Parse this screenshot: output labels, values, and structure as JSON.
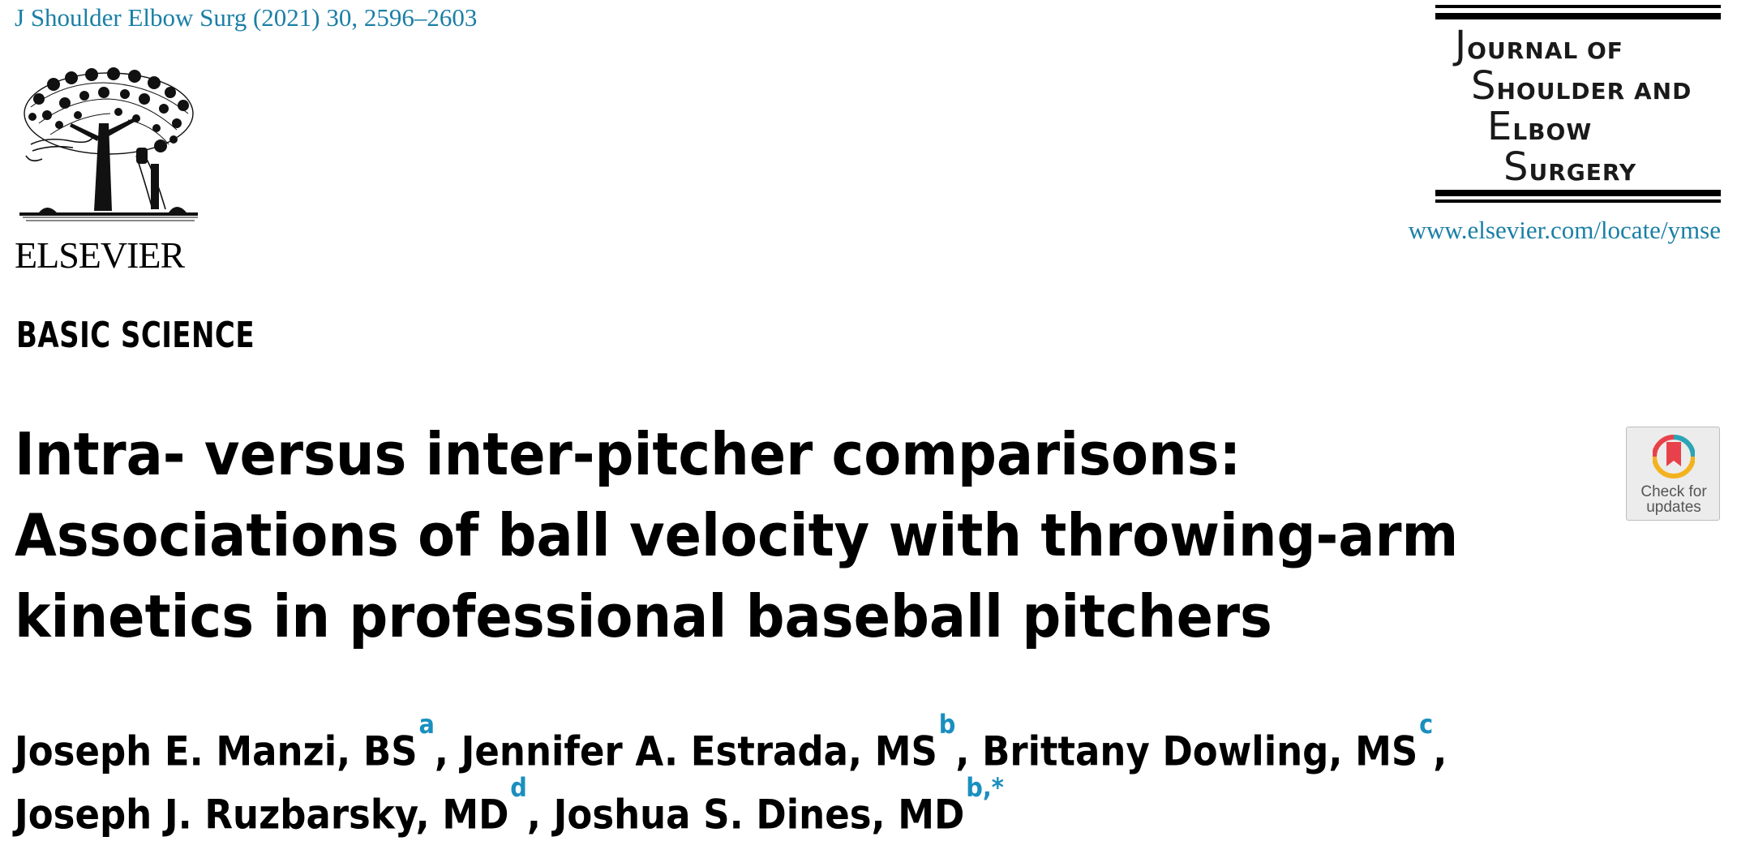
{
  "header": {
    "citation": "J Shoulder Elbow Surg (2021) 30, 2596–2603",
    "publisher": "ELSEVIER",
    "journal_lines": [
      {
        "cap": "J",
        "rest": "OURNAL OF"
      },
      {
        "cap": "S",
        "rest": "HOULDER AND"
      },
      {
        "cap": "E",
        "rest": "LBOW"
      },
      {
        "cap": "S",
        "rest": "URGERY"
      }
    ],
    "journal_url": "www.elsevier.com/locate/ymse"
  },
  "article": {
    "section": "BASIC SCIENCE",
    "title_lines": [
      "Intra- versus inter-pitcher comparisons:",
      "Associations of ball velocity with throwing-arm",
      "kinetics in professional baseball pitchers"
    ],
    "check_updates": {
      "line1": "Check for",
      "line2": "updates"
    },
    "authors": [
      {
        "name": "Joseph E. Manzi, BS",
        "aff": "a",
        "after": ", "
      },
      {
        "name": "Jennifer A. Estrada, MS",
        "aff": "b",
        "after": ", "
      },
      {
        "name": "Brittany Dowling, MS",
        "aff": "c",
        "after": ","
      },
      {
        "name": "Joseph J. Ruzbarsky, MD",
        "aff": "d",
        "after": ", "
      },
      {
        "name": "Joshua S. Dines, MD",
        "aff": "b,*",
        "after": ""
      }
    ]
  },
  "colors": {
    "link_blue": "#1a7fa6",
    "affiliation_blue": "#1a8fbf"
  }
}
